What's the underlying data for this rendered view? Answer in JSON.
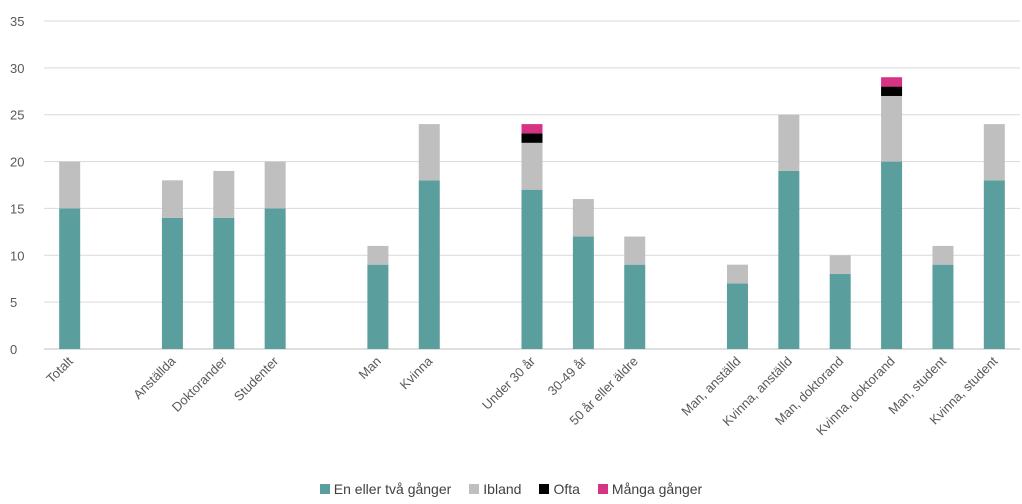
{
  "chart_data": {
    "type": "bar",
    "stacked": true,
    "categories": [
      "Totalt",
      "",
      "Anställda",
      "Doktorander",
      "Studenter",
      "",
      "Man",
      "Kvinna",
      "",
      "Under 30 år",
      "30-49 år",
      "50 år eller äldre",
      "",
      "Man, anställd",
      "Kvinna, anställd",
      "Man, doktorand",
      "Kvinna, doktorand",
      "Man, student",
      "Kvinna, student"
    ],
    "series": [
      {
        "name": "En eller två gånger",
        "color": "#5b9e9e",
        "values": [
          15,
          null,
          14,
          14,
          15,
          null,
          9,
          18,
          null,
          17,
          12,
          9,
          null,
          7,
          19,
          8,
          20,
          9,
          18
        ]
      },
      {
        "name": "Ibland",
        "color": "#bfbfbf",
        "values": [
          5,
          null,
          4,
          5,
          5,
          null,
          2,
          6,
          null,
          5,
          4,
          3,
          null,
          2,
          6,
          2,
          7,
          2,
          6
        ]
      },
      {
        "name": "Ofta",
        "color": "#000000",
        "values": [
          0,
          null,
          0,
          0,
          0,
          null,
          0,
          0,
          null,
          1,
          0,
          0,
          null,
          0,
          0,
          0,
          1,
          0,
          0
        ]
      },
      {
        "name": "Många gånger",
        "color": "#d63384",
        "values": [
          0,
          null,
          0,
          0,
          0,
          null,
          0,
          0,
          null,
          1,
          0,
          0,
          null,
          0,
          0,
          0,
          1,
          0,
          0
        ]
      }
    ],
    "ylim": [
      0,
      35
    ],
    "yticks": [
      0,
      5,
      10,
      15,
      20,
      25,
      30,
      35
    ],
    "grid": true,
    "legend_position": "bottom"
  }
}
